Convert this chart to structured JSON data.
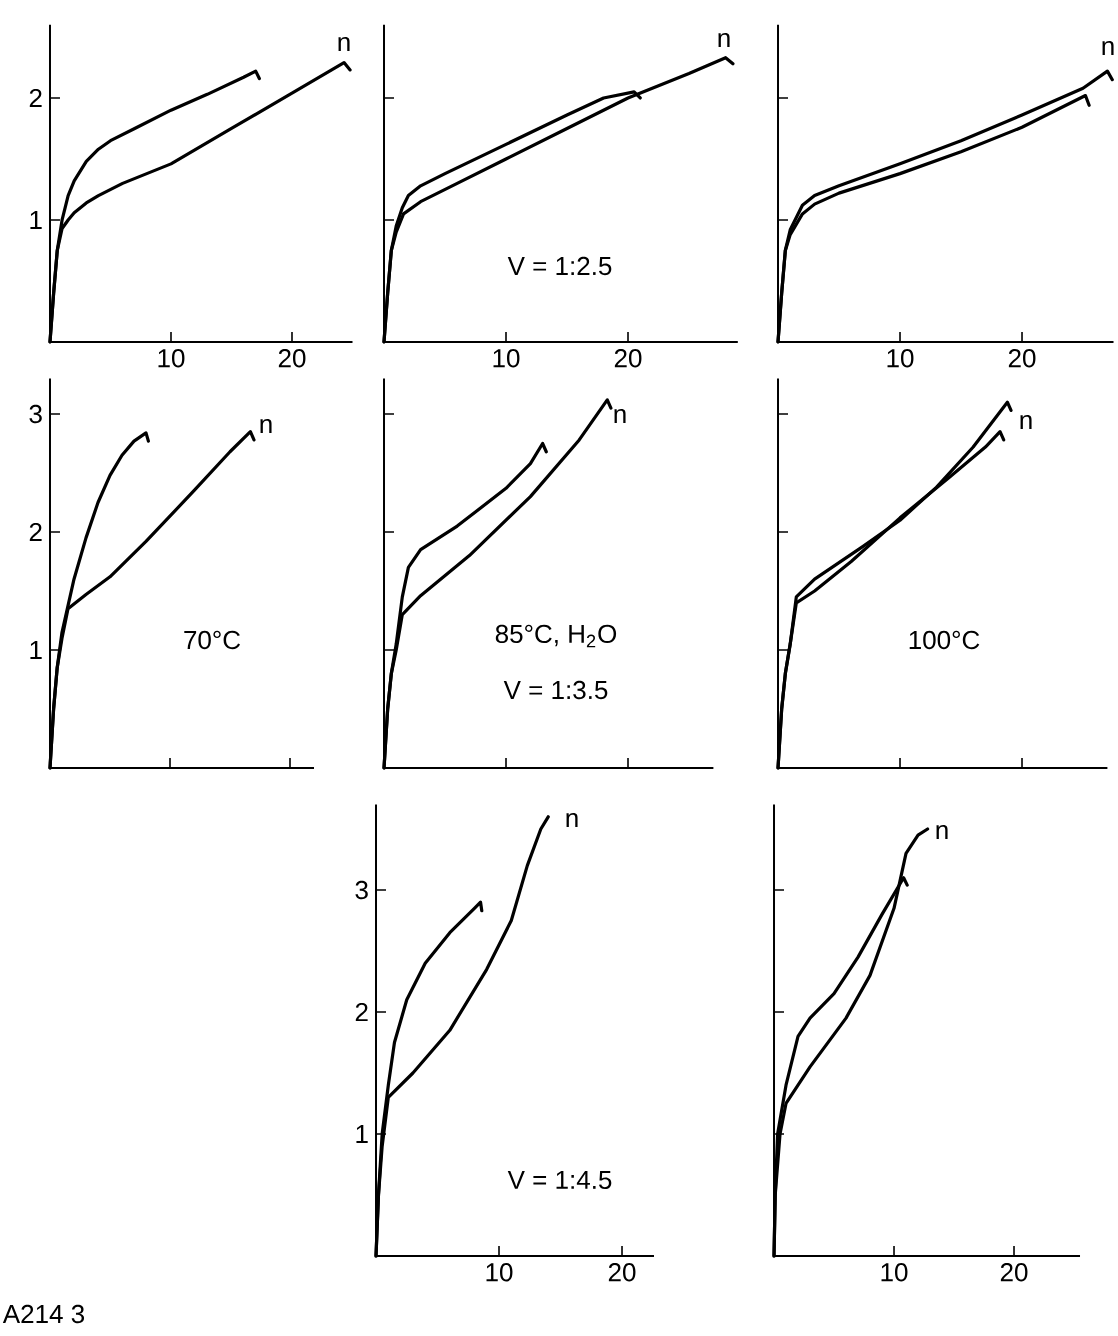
{
  "chart_data": [
    {
      "type": "line",
      "xlim": [
        0,
        25
      ],
      "ylim": [
        0,
        2.6
      ],
      "xticks": [
        10,
        20
      ],
      "yticks": [
        1,
        2
      ],
      "marker": "none",
      "grid": false,
      "series": [
        {
          "color": "#000000",
          "x": [
            0,
            0.3,
            0.6,
            1,
            1.5,
            2,
            3,
            4,
            5,
            7,
            10,
            13,
            16,
            17,
            17.3
          ],
          "values": [
            0,
            0.4,
            0.75,
            1.0,
            1.2,
            1.32,
            1.48,
            1.58,
            1.65,
            1.75,
            1.9,
            2.03,
            2.17,
            2.22,
            2.16
          ]
        },
        {
          "color": "#000000",
          "x": [
            0,
            0.3,
            0.6,
            1,
            1.5,
            2,
            3,
            4,
            6,
            10,
            15,
            20,
            24.3,
            24.8
          ],
          "values": [
            0,
            0.4,
            0.75,
            0.93,
            1.0,
            1.06,
            1.14,
            1.2,
            1.3,
            1.46,
            1.75,
            2.04,
            2.29,
            2.23
          ]
        }
      ],
      "annotations": [
        "n"
      ]
    },
    {
      "type": "line",
      "xlim": [
        0,
        29
      ],
      "ylim": [
        0,
        2.6
      ],
      "xticks": [
        10,
        20
      ],
      "yticks": [
        1,
        2
      ],
      "tick_labels": "x",
      "marker": "none",
      "grid": false,
      "series": [
        {
          "color": "#000000",
          "x": [
            0,
            0.3,
            0.6,
            1,
            1.5,
            2,
            3,
            5,
            10,
            15,
            18,
            20.5,
            21
          ],
          "values": [
            0,
            0.4,
            0.75,
            0.95,
            1.1,
            1.2,
            1.28,
            1.38,
            1.62,
            1.86,
            2.0,
            2.05,
            2.0
          ]
        },
        {
          "color": "#000000",
          "x": [
            0,
            0.3,
            0.6,
            1,
            1.6,
            3,
            6,
            10,
            15,
            20,
            25,
            28,
            28.6
          ],
          "values": [
            0,
            0.4,
            0.75,
            0.9,
            1.05,
            1.15,
            1.3,
            1.5,
            1.75,
            2.0,
            2.2,
            2.33,
            2.28
          ]
        }
      ],
      "annotations": [
        "V = 1:2.5",
        "n"
      ]
    },
    {
      "type": "line",
      "xlim": [
        0,
        27.5
      ],
      "ylim": [
        0,
        2.6
      ],
      "xticks": [
        10,
        20
      ],
      "yticks": [
        1,
        2
      ],
      "tick_labels": "x",
      "marker": "none",
      "grid": false,
      "series": [
        {
          "color": "#000000",
          "x": [
            0,
            0.3,
            0.6,
            1,
            2,
            3,
            5,
            10,
            15,
            20,
            25,
            27,
            27.4
          ],
          "values": [
            0,
            0.4,
            0.75,
            0.92,
            1.12,
            1.2,
            1.28,
            1.46,
            1.65,
            1.86,
            2.08,
            2.22,
            2.15
          ]
        },
        {
          "color": "#000000",
          "x": [
            0,
            0.3,
            0.6,
            1,
            2,
            3,
            5,
            10,
            15,
            20,
            25.2,
            25.5
          ],
          "values": [
            0,
            0.4,
            0.75,
            0.88,
            1.05,
            1.13,
            1.22,
            1.38,
            1.56,
            1.76,
            2.02,
            1.94
          ]
        }
      ],
      "annotations": [
        "n"
      ]
    },
    {
      "type": "line",
      "xlim": [
        0,
        22
      ],
      "ylim": [
        0,
        3.3
      ],
      "xticks": [
        10,
        20
      ],
      "yticks": [
        1,
        2,
        3
      ],
      "tick_labels": "y",
      "marker": "none",
      "grid": false,
      "series": [
        {
          "color": "#000000",
          "x": [
            0,
            0.3,
            0.6,
            1,
            2,
            3,
            4,
            5,
            6,
            7,
            8,
            8.2
          ],
          "values": [
            0,
            0.5,
            0.85,
            1.15,
            1.6,
            1.95,
            2.25,
            2.48,
            2.65,
            2.77,
            2.84,
            2.77
          ]
        },
        {
          "color": "#000000",
          "x": [
            0,
            0.3,
            0.6,
            1,
            1.5,
            3,
            5,
            8,
            12,
            15,
            16.7,
            17
          ],
          "values": [
            0,
            0.5,
            0.85,
            1.1,
            1.35,
            1.47,
            1.62,
            1.92,
            2.35,
            2.68,
            2.85,
            2.78
          ]
        }
      ],
      "annotations": [
        "70°C",
        "n"
      ]
    },
    {
      "type": "line",
      "xlim": [
        0,
        27
      ],
      "ylim": [
        0,
        3.3
      ],
      "xticks": [
        10,
        20
      ],
      "yticks": [
        1,
        2,
        3
      ],
      "tick_labels": false,
      "marker": "none",
      "grid": false,
      "series": [
        {
          "color": "#000000",
          "x": [
            0,
            0.3,
            0.6,
            1,
            1.5,
            2,
            3,
            6,
            10,
            12,
            13,
            13.3
          ],
          "values": [
            0,
            0.5,
            0.8,
            1.05,
            1.45,
            1.7,
            1.85,
            2.05,
            2.37,
            2.58,
            2.75,
            2.68
          ]
        },
        {
          "color": "#000000",
          "x": [
            0,
            0.3,
            0.6,
            1,
            1.5,
            3,
            7,
            12,
            16,
            18.3,
            18.6
          ],
          "values": [
            0,
            0.5,
            0.8,
            1.0,
            1.3,
            1.46,
            1.8,
            2.3,
            2.78,
            3.12,
            3.05
          ]
        }
      ],
      "annotations": [
        "85°C, H$_{2}$O",
        "V = 1:3.5",
        "n"
      ]
    },
    {
      "type": "line",
      "xlim": [
        0,
        27
      ],
      "ylim": [
        0,
        3.3
      ],
      "xticks": [
        10,
        20
      ],
      "yticks": [
        1,
        2,
        3
      ],
      "tick_labels": false,
      "marker": "none",
      "grid": false,
      "series": [
        {
          "color": "#000000",
          "x": [
            0,
            0.3,
            0.6,
            1,
            1.5,
            3,
            7,
            10,
            13,
            16,
            18.8,
            19.1
          ],
          "values": [
            0,
            0.5,
            0.8,
            1.05,
            1.45,
            1.6,
            1.88,
            2.1,
            2.38,
            2.72,
            3.1,
            3.03
          ]
        },
        {
          "color": "#000000",
          "x": [
            0,
            0.3,
            0.6,
            1,
            1.5,
            3,
            6,
            10,
            14,
            17,
            18.2,
            18.5
          ],
          "values": [
            0,
            0.5,
            0.8,
            1.05,
            1.4,
            1.5,
            1.75,
            2.12,
            2.46,
            2.72,
            2.85,
            2.78
          ]
        }
      ],
      "annotations": [
        "100°C",
        "n"
      ]
    },
    {
      "type": "line",
      "xlim": [
        0,
        22.6
      ],
      "ylim": [
        0,
        3.7
      ],
      "xticks": [
        10,
        20
      ],
      "yticks": [
        1,
        2,
        3
      ],
      "marker": "none",
      "grid": false,
      "series": [
        {
          "color": "#000000",
          "x": [
            0,
            0.2,
            0.5,
            1,
            1.5,
            2.5,
            4,
            6,
            8,
            8.5,
            8.6
          ],
          "values": [
            0,
            0.5,
            1.0,
            1.4,
            1.75,
            2.1,
            2.4,
            2.65,
            2.85,
            2.9,
            2.83
          ]
        },
        {
          "color": "#000000",
          "x": [
            0,
            0.2,
            0.5,
            1,
            3,
            6,
            9,
            11,
            12.3,
            13.4,
            14
          ],
          "values": [
            0,
            0.5,
            0.9,
            1.3,
            1.5,
            1.85,
            2.35,
            2.75,
            3.2,
            3.5,
            3.6
          ]
        }
      ],
      "annotations": [
        "V = 1:4.5",
        "A214 3",
        "n"
      ]
    },
    {
      "type": "line",
      "xlim": [
        0,
        25.5
      ],
      "ylim": [
        0,
        3.7
      ],
      "xticks": [
        10,
        20
      ],
      "yticks": [
        1,
        2,
        3
      ],
      "tick_labels": "x",
      "marker": "none",
      "grid": false,
      "series": [
        {
          "color": "#000000",
          "x": [
            0,
            0.1,
            0.3,
            1,
            2,
            3,
            5,
            7,
            9,
            10.8,
            11.1
          ],
          "values": [
            0,
            0.5,
            1.0,
            1.4,
            1.8,
            1.95,
            2.15,
            2.45,
            2.8,
            3.1,
            3.04
          ]
        },
        {
          "color": "#000000",
          "x": [
            0,
            0.1,
            0.5,
            1,
            3,
            6,
            8,
            10,
            11,
            12,
            12.8
          ],
          "values": [
            0,
            0.5,
            1.0,
            1.25,
            1.55,
            1.95,
            2.3,
            2.85,
            3.3,
            3.45,
            3.5
          ]
        }
      ],
      "annotations": [
        "n"
      ]
    }
  ]
}
